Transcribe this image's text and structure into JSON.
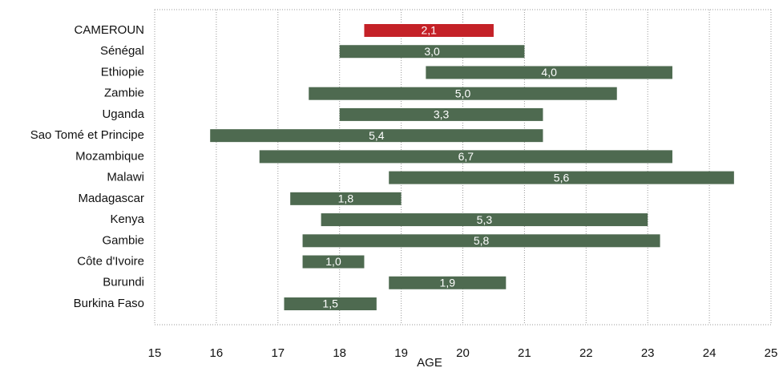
{
  "chart_data": {
    "type": "floating_bar",
    "categories": [
      "CAMEROUN",
      "Sénégal",
      "Ethiopie",
      "Zambie",
      "Uganda",
      "Sao Tomé et Principe",
      "Mozambique",
      "Malawi",
      "Madagascar",
      "Kenya",
      "Gambie",
      "Côte d'Ivoire",
      "Burundi",
      "Burkina Faso"
    ],
    "start": [
      18.4,
      18.0,
      19.4,
      17.5,
      18.0,
      15.9,
      16.7,
      18.8,
      17.2,
      17.7,
      17.4,
      17.4,
      18.8,
      17.1
    ],
    "values": [
      2.1,
      3.0,
      4.0,
      5.0,
      3.3,
      5.4,
      6.7,
      5.6,
      1.8,
      5.3,
      5.8,
      1.0,
      1.9,
      1.5
    ],
    "value_labels": [
      "2,1",
      "3,0",
      "4,0",
      "5,0",
      "3,3",
      "5,4",
      "6,7",
      "5,6",
      "1,8",
      "5,3",
      "5,8",
      "1,0",
      "1,9",
      "1,5"
    ],
    "colors": [
      "#c42127",
      "#4e6a50",
      "#4e6a50",
      "#4e6a50",
      "#4e6a50",
      "#4e6a50",
      "#4e6a50",
      "#4e6a50",
      "#4e6a50",
      "#4e6a50",
      "#4e6a50",
      "#4e6a50",
      "#4e6a50",
      "#4e6a50"
    ],
    "x_label": "AGE",
    "xlim": [
      15,
      25
    ],
    "xticks": [
      15,
      16,
      17,
      18,
      19,
      20,
      21,
      22,
      23,
      24,
      25
    ],
    "grid": true
  }
}
